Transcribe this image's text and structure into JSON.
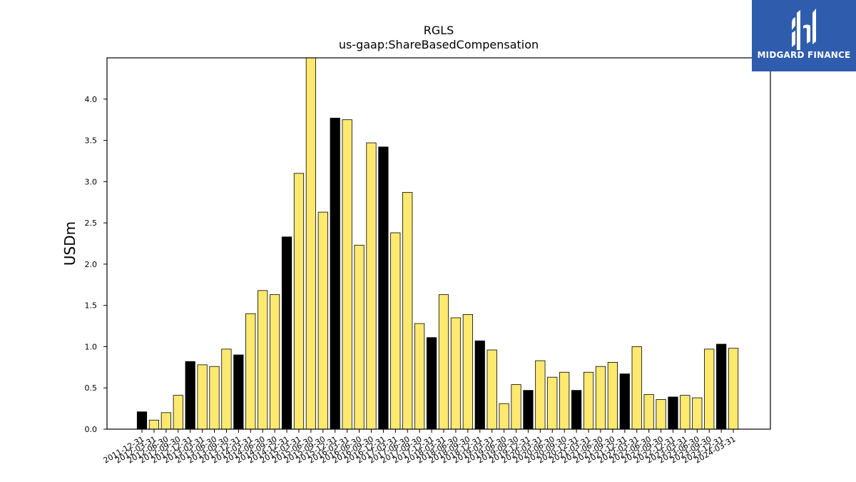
{
  "logo": {
    "text": "MIDGARD FINANCE"
  },
  "chart_data": {
    "type": "bar",
    "title": "RGLS",
    "subtitle": "us-gaap:ShareBasedCompensation",
    "xlabel": "",
    "ylabel": "USDm",
    "ylim": [
      0,
      4.5
    ],
    "yticks": [
      "0.0",
      "0.5",
      "1.0",
      "1.5",
      "2.0",
      "2.5",
      "3.0",
      "3.5",
      "4.0"
    ],
    "grid": false,
    "colors": {
      "annual": "#000000",
      "quarterly": "#fde96f",
      "edge": "#000000"
    },
    "categories": [
      "2011-12-31",
      "2012-03-31",
      "2012-06-30",
      "2012-09-30",
      "2012-12-31",
      "2013-03-31",
      "2013-06-30",
      "2013-09-30",
      "2013-12-31",
      "2014-03-31",
      "2014-06-30",
      "2014-09-30",
      "2014-12-31",
      "2015-03-31",
      "2015-06-30",
      "2015-09-30",
      "2015-12-31",
      "2016-03-31",
      "2016-06-30",
      "2016-09-30",
      "2016-12-31",
      "2017-03-31",
      "2017-06-30",
      "2017-09-30",
      "2017-12-31",
      "2018-03-31",
      "2018-06-30",
      "2018-09-30",
      "2018-12-31",
      "2019-03-31",
      "2019-06-30",
      "2019-09-30",
      "2019-12-31",
      "2020-03-31",
      "2020-06-30",
      "2020-09-30",
      "2020-12-31",
      "2021-03-31",
      "2021-06-30",
      "2021-09-30",
      "2021-12-31",
      "2022-03-31",
      "2022-06-30",
      "2022-09-30",
      "2022-12-31",
      "2023-03-31",
      "2023-06-30",
      "2023-09-30",
      "2023-12-31",
      "2024-03-31"
    ],
    "values": [
      0.21,
      0.11,
      0.2,
      0.41,
      0.82,
      0.78,
      0.76,
      0.97,
      0.9,
      1.4,
      1.68,
      1.63,
      2.33,
      3.1,
      4.5,
      2.63,
      3.77,
      3.75,
      2.23,
      3.47,
      3.42,
      2.38,
      2.87,
      1.28,
      1.11,
      1.63,
      1.35,
      1.39,
      1.07,
      0.96,
      0.31,
      0.54,
      0.47,
      0.83,
      0.63,
      0.69,
      0.47,
      0.69,
      0.76,
      0.81,
      0.67,
      1.0,
      0.42,
      0.36,
      0.39,
      0.41,
      0.38,
      0.97,
      1.03,
      0.98
    ],
    "annual": [
      1,
      0,
      0,
      0,
      1,
      0,
      0,
      0,
      1,
      0,
      0,
      0,
      1,
      0,
      0,
      0,
      1,
      0,
      0,
      0,
      1,
      0,
      0,
      0,
      1,
      0,
      0,
      0,
      1,
      0,
      0,
      0,
      1,
      0,
      0,
      0,
      1,
      0,
      0,
      0,
      1,
      0,
      0,
      0,
      1,
      0,
      0,
      0,
      1,
      0
    ]
  }
}
